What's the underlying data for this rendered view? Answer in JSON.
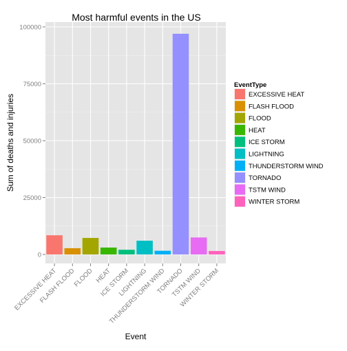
{
  "chart_data": {
    "type": "bar",
    "title": "Most harmful events in the US",
    "xlabel": "Event",
    "ylabel": "Sum of deaths and injuries",
    "ylim": [
      0,
      100000
    ],
    "yticks": [
      0,
      25000,
      50000,
      75000,
      100000
    ],
    "categories": [
      "EXCESSIVE HEAT",
      "FLASH FLOOD",
      "FLOOD",
      "HEAT",
      "ICE STORM",
      "LIGHTNING",
      "THUNDERSTORM WIND",
      "TORNADO",
      "TSTM WIND",
      "WINTER STORM"
    ],
    "values": [
      8428,
      2755,
      7259,
      3037,
      2064,
      6046,
      1621,
      96979,
      7461,
      1527
    ],
    "colors": [
      "#F8766D",
      "#D89000",
      "#A3A500",
      "#39B600",
      "#00BF7D",
      "#00BFC4",
      "#00B0F6",
      "#9590FF",
      "#E76BF3",
      "#FF62BC"
    ],
    "grid": true,
    "legend": {
      "title": "EventType",
      "placement": "right"
    }
  }
}
